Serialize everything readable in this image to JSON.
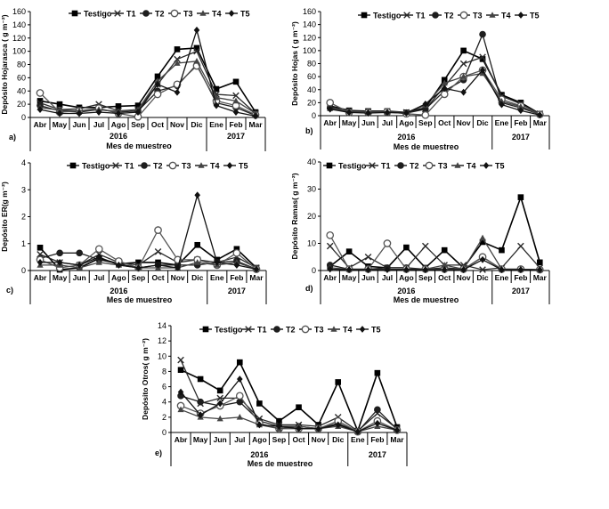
{
  "figure": {
    "months": [
      "Abr",
      "May",
      "Jun",
      "Jul",
      "Ago",
      "Sep",
      "Oct",
      "Nov",
      "Dic",
      "Ene",
      "Feb",
      "Mar"
    ],
    "years": [
      "2016",
      "2017"
    ],
    "xlabel": "Mes de muestreo",
    "legend": [
      "Testigo",
      "T1",
      "T2",
      "T3",
      "T4",
      "T5"
    ],
    "marker_styles": [
      "square",
      "x",
      "circle",
      "open-circle",
      "triangle",
      "diamond"
    ]
  },
  "chart_data": [
    {
      "type": "line",
      "panel_label": "a)",
      "ylabel": "Depósito Hojarasca ( g m⁻²)",
      "ylim": [
        0,
        160
      ],
      "yticks": [
        0,
        20,
        40,
        60,
        80,
        100,
        120,
        140,
        160
      ],
      "categories": [
        "Abr",
        "May",
        "Jun",
        "Jul",
        "Ago",
        "Sep",
        "Oct",
        "Nov",
        "Dic",
        "Ene",
        "Feb",
        "Mar"
      ],
      "series": [
        {
          "name": "Testigo",
          "values": [
            25,
            20,
            15,
            15,
            17,
            18,
            62,
            103,
            105,
            43,
            54,
            8
          ]
        },
        {
          "name": "T1",
          "values": [
            22,
            12,
            13,
            20,
            10,
            12,
            50,
            88,
            100,
            35,
            33,
            6
          ]
        },
        {
          "name": "T2",
          "values": [
            18,
            10,
            8,
            12,
            8,
            10,
            40,
            48,
            80,
            22,
            15,
            3
          ]
        },
        {
          "name": "T3",
          "values": [
            37,
            8,
            10,
            14,
            6,
            1,
            35,
            50,
            78,
            25,
            18,
            4
          ]
        },
        {
          "name": "T4",
          "values": [
            15,
            11,
            10,
            12,
            9,
            12,
            55,
            82,
            85,
            30,
            25,
            6
          ]
        },
        {
          "name": "T5",
          "values": [
            12,
            6,
            6,
            8,
            6,
            8,
            50,
            38,
            132,
            18,
            8,
            2
          ]
        }
      ]
    },
    {
      "type": "line",
      "panel_label": "b)",
      "ylabel": "Depósito Hojas ( g m⁻²)",
      "ylim": [
        0,
        160
      ],
      "yticks": [
        0,
        20,
        40,
        60,
        80,
        100,
        120,
        140,
        160
      ],
      "categories": [
        "Abr",
        "May",
        "Jun",
        "Jul",
        "Ago",
        "Sep",
        "Oct",
        "Nov",
        "Dic",
        "Ene",
        "Feb",
        "Mar"
      ],
      "series": [
        {
          "name": "Testigo",
          "values": [
            15,
            8,
            7,
            7,
            5,
            12,
            55,
            100,
            87,
            32,
            20,
            3
          ]
        },
        {
          "name": "T1",
          "values": [
            14,
            7,
            6,
            6,
            5,
            10,
            45,
            80,
            90,
            30,
            18,
            3
          ]
        },
        {
          "name": "T2",
          "values": [
            12,
            6,
            5,
            5,
            4,
            10,
            38,
            55,
            125,
            20,
            12,
            2
          ]
        },
        {
          "name": "T3",
          "values": [
            20,
            5,
            5,
            6,
            3,
            1,
            33,
            60,
            70,
            25,
            15,
            2
          ]
        },
        {
          "name": "T4",
          "values": [
            11,
            7,
            6,
            6,
            5,
            16,
            50,
            60,
            65,
            22,
            14,
            2
          ]
        },
        {
          "name": "T5",
          "values": [
            10,
            5,
            4,
            5,
            4,
            18,
            42,
            36,
            70,
            17,
            8,
            1
          ]
        }
      ]
    },
    {
      "type": "line",
      "panel_label": "c)",
      "ylabel": "Depósito ER(g m⁻²)",
      "ylim": [
        0,
        4
      ],
      "yticks": [
        0,
        1,
        2,
        3,
        4
      ],
      "categories": [
        "Abr",
        "May",
        "Jun",
        "Jul",
        "Ago",
        "Sep",
        "Oct",
        "Nov",
        "Dic",
        "Ene",
        "Feb",
        "Mar"
      ],
      "series": [
        {
          "name": "Testigo",
          "values": [
            0.85,
            0.03,
            0.1,
            0.45,
            0.25,
            0.3,
            0.3,
            0.2,
            0.95,
            0.4,
            0.8,
            0.1
          ]
        },
        {
          "name": "T1",
          "values": [
            0.6,
            0.3,
            0.2,
            0.6,
            0.3,
            0.2,
            0.7,
            0.3,
            0.4,
            0.3,
            0.5,
            0.1
          ]
        },
        {
          "name": "T2",
          "values": [
            0.45,
            0.65,
            0.65,
            0.4,
            0.25,
            0.1,
            0.2,
            0.2,
            0.2,
            0.3,
            0.35,
            0.05
          ]
        },
        {
          "name": "T3",
          "values": [
            0.4,
            0.1,
            0.2,
            0.8,
            0.35,
            0.1,
            1.5,
            0.4,
            0.4,
            0.2,
            0.65,
            0.05
          ]
        },
        {
          "name": "T4",
          "values": [
            0.2,
            0.2,
            0.1,
            0.3,
            0.2,
            0.1,
            0.1,
            0.1,
            0.3,
            0.2,
            0.3,
            0.05
          ]
        },
        {
          "name": "T5",
          "values": [
            0.3,
            0.3,
            0.2,
            0.5,
            0.2,
            0.1,
            0.2,
            0.1,
            2.8,
            0.3,
            0.2,
            0.05
          ]
        }
      ]
    },
    {
      "type": "line",
      "panel_label": "d)",
      "ylabel": "Depósito Ramas( g m⁻²)",
      "ylim": [
        0,
        40
      ],
      "yticks": [
        0,
        10,
        20,
        30,
        40
      ],
      "categories": [
        "Abr",
        "May",
        "Jun",
        "Jul",
        "Ago",
        "Sep",
        "Oct",
        "Nov",
        "Dic",
        "Ene",
        "Feb",
        "Mar"
      ],
      "series": [
        {
          "name": "Testigo",
          "values": [
            1.5,
            7,
            1.5,
            1,
            8.5,
            1,
            7.5,
            1,
            10.5,
            7.5,
            27,
            3
          ]
        },
        {
          "name": "T1",
          "values": [
            9,
            1,
            5,
            1,
            1,
            9,
            2,
            2,
            0.3,
            1,
            9,
            1
          ]
        },
        {
          "name": "T2",
          "values": [
            2,
            0.5,
            0.5,
            1,
            1,
            0.5,
            1,
            0.5,
            5,
            0.5,
            0.5,
            0.3
          ]
        },
        {
          "name": "T3",
          "values": [
            13,
            0.5,
            0.5,
            10,
            0.5,
            0.5,
            0.5,
            0.5,
            5,
            0.5,
            0.5,
            0.3
          ]
        },
        {
          "name": "T4",
          "values": [
            1,
            0.5,
            0.5,
            0.5,
            0.5,
            0.5,
            2,
            0.5,
            12,
            0.5,
            0.5,
            0.3
          ]
        },
        {
          "name": "T5",
          "values": [
            0.5,
            0.3,
            0.3,
            0.3,
            0.3,
            0.3,
            0.3,
            0.3,
            4,
            0.3,
            0.3,
            0.3
          ]
        }
      ]
    },
    {
      "type": "line",
      "panel_label": "e)",
      "ylabel": "Depósito Otros( g m⁻²)",
      "ylim": [
        0,
        14
      ],
      "yticks": [
        0,
        2,
        4,
        6,
        8,
        10,
        12,
        14
      ],
      "categories": [
        "Abr",
        "May",
        "Jun",
        "Jul",
        "Ago",
        "Sep",
        "Oct",
        "Nov",
        "Dic",
        "Ene",
        "Feb",
        "Mar"
      ],
      "series": [
        {
          "name": "Testigo",
          "values": [
            8.2,
            7,
            5.5,
            9.2,
            3.8,
            1.5,
            3.3,
            1,
            6.6,
            0.2,
            7.8,
            0.7
          ]
        },
        {
          "name": "T1",
          "values": [
            9.5,
            3.8,
            4.5,
            4.5,
            1.8,
            1,
            1,
            0.8,
            2,
            0.2,
            2.5,
            0.5
          ]
        },
        {
          "name": "T2",
          "values": [
            4.8,
            4,
            3.5,
            4,
            1.5,
            0.8,
            0.8,
            0.5,
            1.2,
            0.1,
            3,
            0.4
          ]
        },
        {
          "name": "T3",
          "values": [
            3.5,
            2.5,
            3.5,
            4.8,
            1.2,
            0.5,
            0.5,
            0.5,
            1.5,
            0.1,
            1.5,
            0.3
          ]
        },
        {
          "name": "T4",
          "values": [
            3,
            2,
            1.8,
            2,
            1,
            0.5,
            0.8,
            0.5,
            0.8,
            0.1,
            0.8,
            0.3
          ]
        },
        {
          "name": "T5",
          "values": [
            5.3,
            2.3,
            3.8,
            7,
            1,
            0.8,
            0.5,
            0.5,
            1,
            0.1,
            1.2,
            0.3
          ]
        }
      ]
    }
  ]
}
